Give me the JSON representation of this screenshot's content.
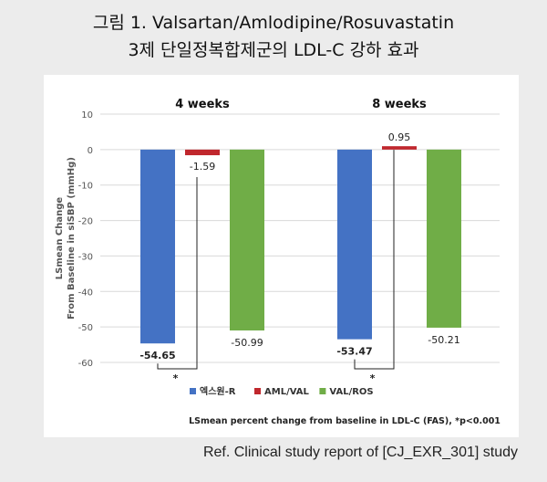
{
  "title": {
    "line1": "그림 1. Valsartan/Amlodipine/Rosuvastatin",
    "line2": "3제 단일정복합제군의 LDL-C 강하 효과"
  },
  "footnote": "Ref. Clinical study report of [CJ_EXR_301] study",
  "chart_data": {
    "type": "bar",
    "panels": [
      "4 weeks",
      "8 weeks"
    ],
    "ylabel_line1": "LSmean Change",
    "ylabel_line2": "From Baseline in siSBP (mmHg)",
    "ylim": [
      -60,
      10
    ],
    "yticks": [
      "10",
      "0",
      "-10",
      "-20",
      "-30",
      "-40",
      "-50",
      "-60"
    ],
    "ytick_values": [
      10,
      0,
      -10,
      -20,
      -30,
      -40,
      -50,
      -60
    ],
    "series": [
      {
        "name": "엑스원-R",
        "color": "#4472c4",
        "values": [
          -54.65,
          -53.47
        ],
        "labels": [
          "-54.65",
          "-53.47"
        ]
      },
      {
        "name": "AML/VAL",
        "color": "#c0272d",
        "values": [
          -1.59,
          0.95
        ],
        "labels": [
          "-1.59",
          "0.95"
        ]
      },
      {
        "name": "VAL/ROS",
        "color": "#70ad47",
        "values": [
          -50.99,
          -50.21
        ],
        "labels": [
          "-50.99",
          "-50.21"
        ]
      }
    ],
    "significance_marker": "*",
    "caption": "LSmean percent change from baseline in LDL-C (FAS), *p<0.001",
    "grid": true,
    "legend_position": "bottom"
  }
}
